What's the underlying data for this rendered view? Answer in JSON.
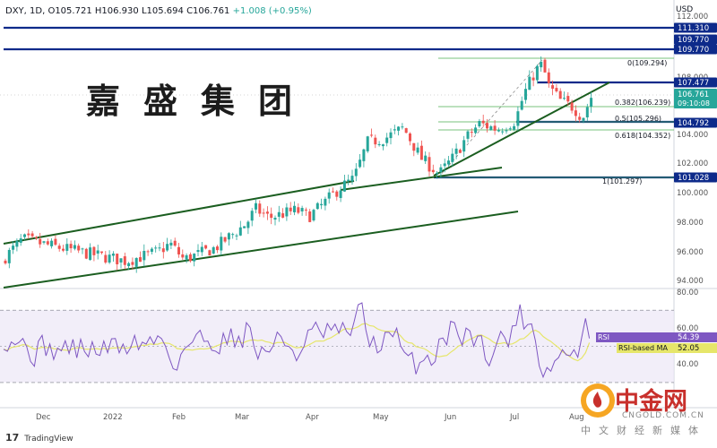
{
  "header": {
    "symbol": "DXY, 1D,",
    "open": "O105.721",
    "high": "H106.930",
    "low": "L105.694",
    "close": "C106.761",
    "change": "+1.008 (+0.95%)",
    "currency": "USD"
  },
  "watermark": "嘉盛集团",
  "footer": {
    "brand": "TradingView"
  },
  "logo": {
    "name": "中金网",
    "url": "CNGOLD.COM.CN",
    "subtitle": "中文财经新媒体"
  },
  "colors": {
    "up": "#26a69a",
    "down": "#ef5350",
    "trend": "#1b5e20",
    "level": "#0d2a8a",
    "rsi": "#7e57c2",
    "rsi_ma": "#e6e66a",
    "fib": "#4caf50"
  },
  "chart_data": [
    {
      "type": "candlestick",
      "title": "DXY, 1D",
      "x_tick_labels": [
        "Dec",
        "2022",
        "Feb",
        "Mar",
        "Apr",
        "May",
        "Jun",
        "Jul",
        "Aug"
      ],
      "y_tick_labels": [
        "112.000",
        "108.000",
        "104.000",
        "102.000",
        "100.000",
        "98.000",
        "96.000",
        "94.000"
      ],
      "ylim": [
        93.5,
        112.2
      ],
      "price_labels": [
        {
          "value": 111.31,
          "label": "111.310",
          "style": "level"
        },
        {
          "value": 109.77,
          "label": "109.770",
          "style": "level"
        },
        {
          "value": 109.77,
          "label": "109.770",
          "style": "level"
        },
        {
          "value": 107.477,
          "label": "107.477",
          "style": "level"
        },
        {
          "value": 106.761,
          "label": "106.761",
          "time": "09:10:08",
          "style": "last"
        },
        {
          "value": 104.792,
          "label": "104.792",
          "style": "level"
        },
        {
          "value": 101.028,
          "label": "101.028",
          "style": "level"
        }
      ],
      "fibonacci": [
        {
          "ratio": "0",
          "value": 109.294,
          "label": "0(109.294)"
        },
        {
          "ratio": "0.382",
          "value": 106.239,
          "label": "0.382(106.239)"
        },
        {
          "ratio": "0.5",
          "value": 105.296,
          "label": "0.5(105.296)"
        },
        {
          "ratio": "0.618",
          "value": 104.352,
          "label": "0.618(104.352)"
        },
        {
          "ratio": "1",
          "value": 101.297,
          "label": "1(101.297)"
        }
      ],
      "last_close": 106.761,
      "high": 109.294,
      "low_start": 95.3
    },
    {
      "type": "line",
      "title": "RSI",
      "y_tick_labels": [
        "80.00",
        "60.00",
        "40.00"
      ],
      "ylim": [
        25,
        82
      ],
      "bands": [
        70,
        30
      ],
      "series": [
        {
          "name": "RSI",
          "last": 54.39,
          "label": "54.39"
        },
        {
          "name": "RSI-based MA",
          "last": 52.05,
          "label": "52.05"
        }
      ]
    }
  ]
}
